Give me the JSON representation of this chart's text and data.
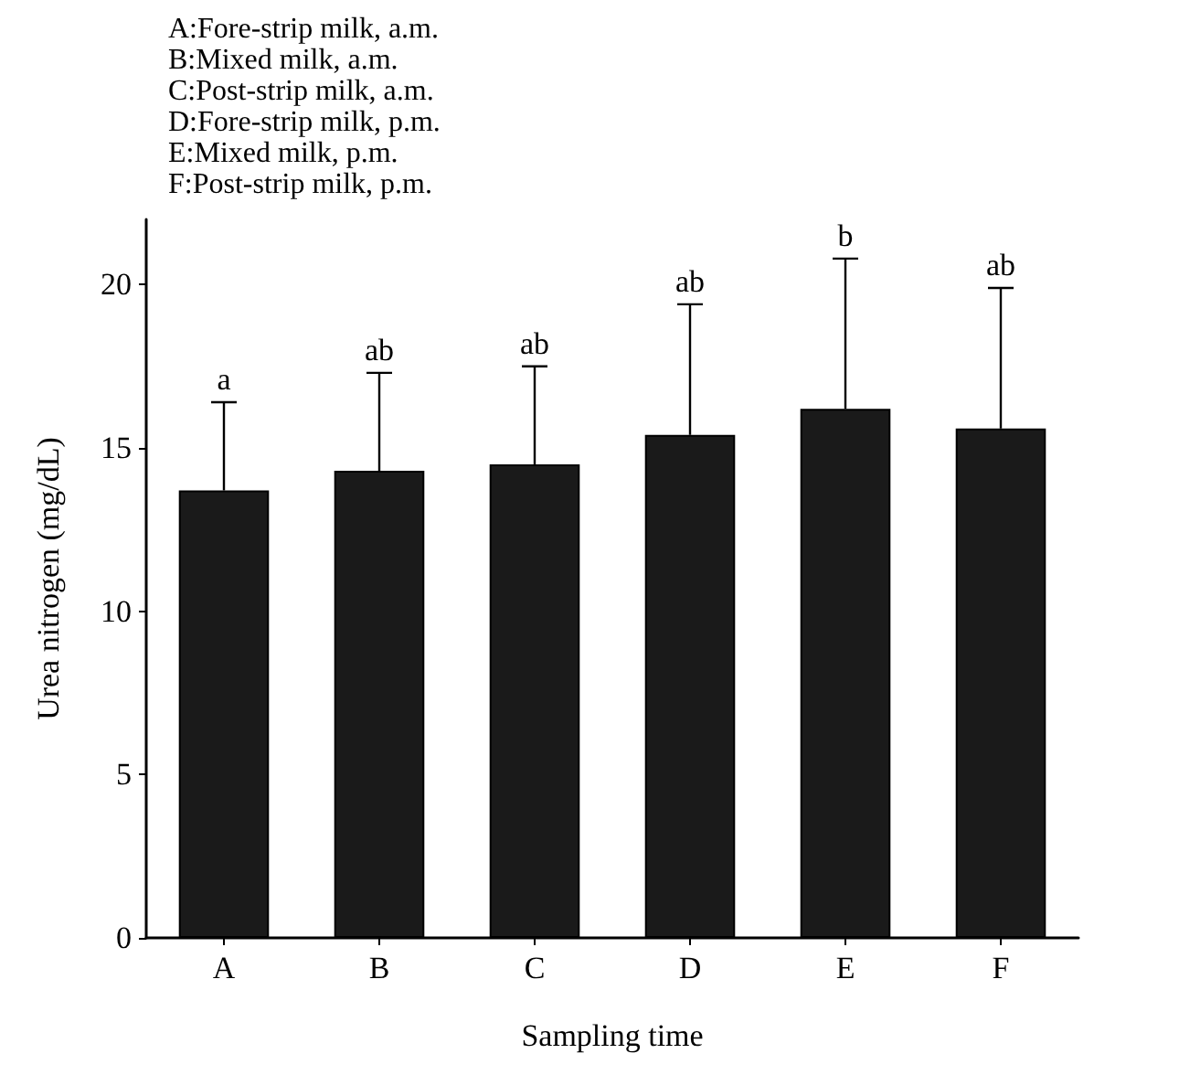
{
  "chart_data": {
    "type": "bar",
    "xlabel": "Sampling time",
    "ylabel": "Urea nitrogen (mg/dL)",
    "categories": [
      "A",
      "B",
      "C",
      "D",
      "E",
      "F"
    ],
    "values": [
      13.7,
      14.3,
      14.5,
      15.4,
      16.2,
      15.6
    ],
    "errors": [
      [
        13.7,
        16.4
      ],
      [
        14.3,
        17.3
      ],
      [
        14.5,
        17.5
      ],
      [
        15.4,
        19.4
      ],
      [
        16.2,
        20.8
      ],
      [
        15.6,
        19.9
      ]
    ],
    "color": "#1a1a1a",
    "ylim": [
      0,
      22
    ],
    "yticks": [
      0,
      5,
      10,
      15,
      20
    ],
    "grid": false,
    "annotations": [
      "A:Fore-strip milk, a.m.",
      "B:Mixed milk, a.m.",
      "C:Post-strip milk, a.m.",
      "D:Fore-strip milk, p.m.",
      "E:Mixed milk, p.m.",
      "F:Post-strip milk, p.m.",
      "a",
      "ab",
      "ab",
      "ab",
      "b",
      "ab"
    ]
  }
}
